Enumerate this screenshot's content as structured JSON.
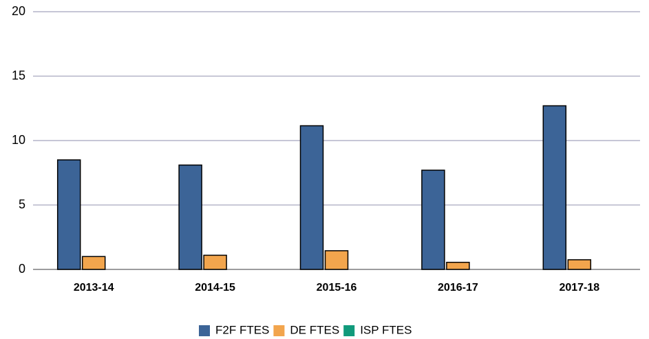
{
  "chart_data": {
    "type": "bar",
    "categories": [
      "2013-14",
      "2014-15",
      "2015-16",
      "2016-17",
      "2017-18"
    ],
    "series": [
      {
        "name": "F2F FTES",
        "color": "#3c6497",
        "values": [
          8.5,
          8.1,
          11.15,
          7.7,
          12.7
        ]
      },
      {
        "name": "DE FTES",
        "color": "#f2a54d",
        "values": [
          1.0,
          1.1,
          1.45,
          0.55,
          0.75
        ]
      },
      {
        "name": "ISP FTES",
        "color": "#119a7b",
        "values": [
          0,
          0,
          0,
          0,
          0
        ]
      }
    ],
    "ylim": [
      0,
      20
    ],
    "yticks": [
      0,
      5,
      10,
      15,
      20
    ],
    "grid": true,
    "legend": "bottom"
  }
}
